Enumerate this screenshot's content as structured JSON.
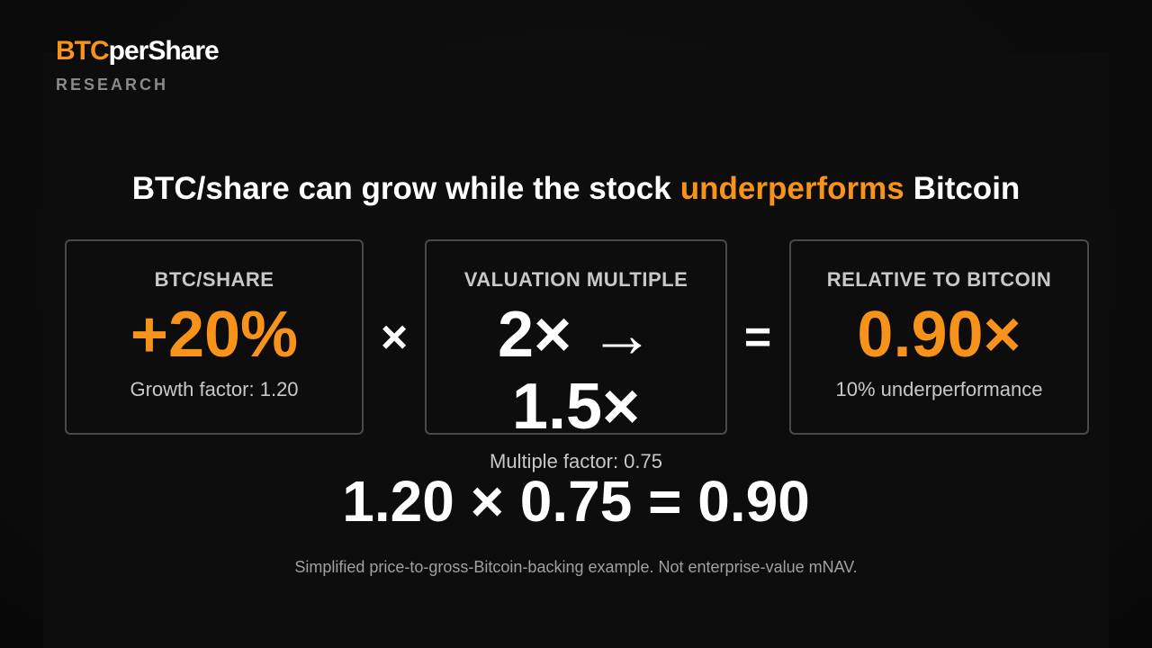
{
  "logo": {
    "brand_accent": "BTC",
    "brand_rest": "perShare",
    "tagline": "RESEARCH"
  },
  "headline": {
    "before": "BTC/share can grow while the stock",
    "highlight": "underperforms",
    "after": "Bitcoin"
  },
  "cards": [
    {
      "label": "BTC/SHARE",
      "value": "+20%",
      "caption": "Growth factor: 1.20",
      "accent": true
    },
    {
      "label": "VALUATION MULTIPLE",
      "value": "2× → 1.5×",
      "caption": "Multiple factor: 0.75",
      "accent": false
    },
    {
      "label": "RELATIVE TO BITCOIN",
      "value": "0.90×",
      "caption": "10% underperformance",
      "accent": true
    }
  ],
  "operators": [
    "×",
    "="
  ],
  "equation": "1.20 × 0.75 = 0.90",
  "footnote": "Simplified price-to-gross-Bitcoin-backing example. Not enterprise-value mNAV."
}
